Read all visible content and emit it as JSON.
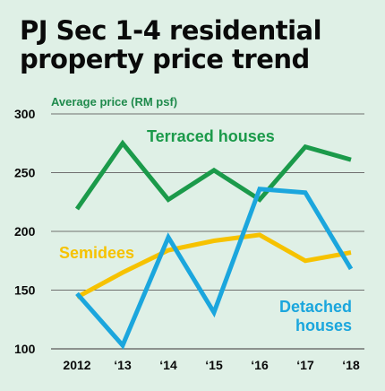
{
  "title_line1": "PJ Sec 1-4 residential",
  "title_line2": "property price trend",
  "chart_data": {
    "type": "line",
    "title": "PJ Sec 1-4 residential property price trend",
    "ylabel": "Average price (RM psf)",
    "xlabel": "",
    "categories": [
      "2012",
      "‘13",
      "‘14",
      "‘15",
      "‘16",
      "‘17",
      "‘18"
    ],
    "ylim": [
      100,
      300
    ],
    "yticks": [
      100,
      150,
      200,
      250,
      300
    ],
    "grid": true,
    "series": [
      {
        "name": "Terraced houses",
        "label_lines": [
          "Terraced houses"
        ],
        "color": "#1b9a4a",
        "values": [
          219,
          275,
          227,
          252,
          227,
          272,
          261
        ]
      },
      {
        "name": "Semidees",
        "label_lines": [
          "Semidees"
        ],
        "color": "#f6c200",
        "values": [
          144,
          165,
          184,
          192,
          197,
          175,
          182
        ]
      },
      {
        "name": "Detached houses",
        "label_lines": [
          "Detached",
          "houses"
        ],
        "color": "#1ba6dd",
        "values": [
          147,
          103,
          195,
          131,
          236,
          233,
          168
        ]
      }
    ]
  }
}
